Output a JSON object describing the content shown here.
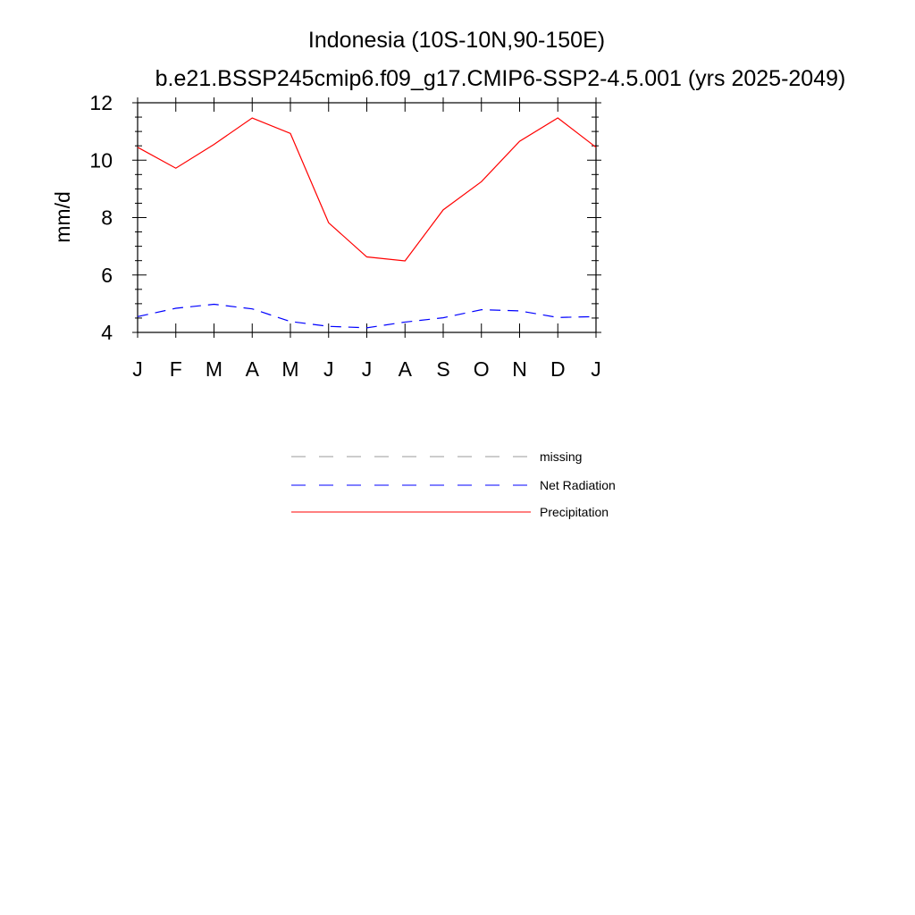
{
  "chart_data": {
    "type": "line",
    "title": "Indonesia (10S-10N,90-150E)",
    "subtitle": "b.e21.BSSP245cmip6.f09_g17.CMIP6-SSP2-4.5.001 (yrs 2025-2049)",
    "xlabel": "",
    "ylabel": "mm/d",
    "categories": [
      "J",
      "F",
      "M",
      "A",
      "M",
      "J",
      "J",
      "A",
      "S",
      "O",
      "N",
      "D",
      "J"
    ],
    "ylim": [
      4,
      12
    ],
    "yticks": [
      4,
      6,
      8,
      10,
      12
    ],
    "grid": false,
    "legend_position": "bottom-center",
    "series": [
      {
        "name": "Precipitation",
        "color": "#ff0000",
        "dash": "solid",
        "values": [
          10.45,
          9.72,
          10.55,
          11.47,
          10.93,
          7.82,
          6.63,
          6.49,
          8.27,
          9.25,
          10.66,
          11.47,
          10.45
        ]
      },
      {
        "name": "Net Radiation",
        "color": "#0000ff",
        "dash": "dashed",
        "values": [
          4.55,
          4.84,
          4.98,
          4.82,
          4.38,
          4.21,
          4.16,
          4.36,
          4.51,
          4.79,
          4.75,
          4.52,
          4.55
        ]
      }
    ],
    "legend": [
      {
        "label": "missing",
        "color": "#9a9a9a",
        "dash": "dashed"
      },
      {
        "label": "Net Radiation",
        "color": "#0000ff",
        "dash": "dashed"
      },
      {
        "label": "Precipitation",
        "color": "#ff0000",
        "dash": "solid"
      }
    ]
  }
}
